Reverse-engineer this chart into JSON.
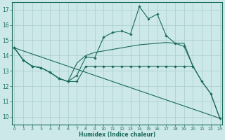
{
  "bg_color": "#cce8e8",
  "grid_color": "#aacccc",
  "line_color": "#1a6b5a",
  "xlabel": "Humidex (Indice chaleur)",
  "xlim": [
    -0.3,
    23.3
  ],
  "ylim": [
    9.5,
    17.5
  ],
  "yticks": [
    10,
    11,
    12,
    13,
    14,
    15,
    16,
    17
  ],
  "xticks": [
    0,
    1,
    2,
    3,
    4,
    5,
    6,
    7,
    8,
    9,
    10,
    11,
    12,
    13,
    14,
    15,
    16,
    17,
    18,
    19,
    20,
    21,
    22,
    23
  ],
  "line1_x": [
    0,
    1,
    2,
    3,
    4,
    5,
    6,
    7,
    8,
    9,
    10,
    11,
    12,
    13,
    14,
    15,
    16,
    17,
    18,
    19,
    20
  ],
  "line1_y": [
    14.5,
    13.7,
    13.3,
    13.2,
    12.9,
    12.5,
    12.3,
    12.7,
    13.9,
    13.85,
    15.2,
    15.5,
    15.6,
    15.4,
    17.2,
    16.4,
    16.7,
    15.3,
    14.8,
    14.6,
    13.3
  ],
  "line2_x": [
    0,
    1,
    2,
    3,
    4,
    5,
    6,
    7,
    8,
    9,
    10,
    11,
    12,
    13,
    14,
    15,
    16,
    17,
    18,
    19,
    20,
    21,
    22,
    23
  ],
  "line2_y": [
    14.5,
    13.7,
    13.3,
    13.2,
    12.9,
    12.5,
    12.3,
    12.3,
    13.3,
    13.3,
    13.3,
    13.3,
    13.3,
    13.3,
    13.3,
    13.3,
    13.3,
    13.3,
    13.3,
    13.3,
    13.3,
    12.3,
    11.5,
    9.9
  ],
  "line3_x": [
    0,
    1,
    2,
    3,
    4,
    5,
    6,
    7,
    8,
    9,
    10,
    11,
    12,
    13,
    14,
    15,
    16,
    17,
    18,
    19,
    20,
    21,
    22,
    23
  ],
  "line3_y": [
    14.5,
    13.7,
    13.3,
    13.2,
    12.9,
    12.5,
    12.3,
    13.5,
    14.0,
    14.2,
    14.3,
    14.4,
    14.5,
    14.6,
    14.7,
    14.75,
    14.8,
    14.85,
    14.8,
    14.8,
    13.3,
    12.3,
    11.5,
    9.9
  ],
  "line4_x": [
    0,
    23
  ],
  "line4_y": [
    14.5,
    9.9
  ]
}
